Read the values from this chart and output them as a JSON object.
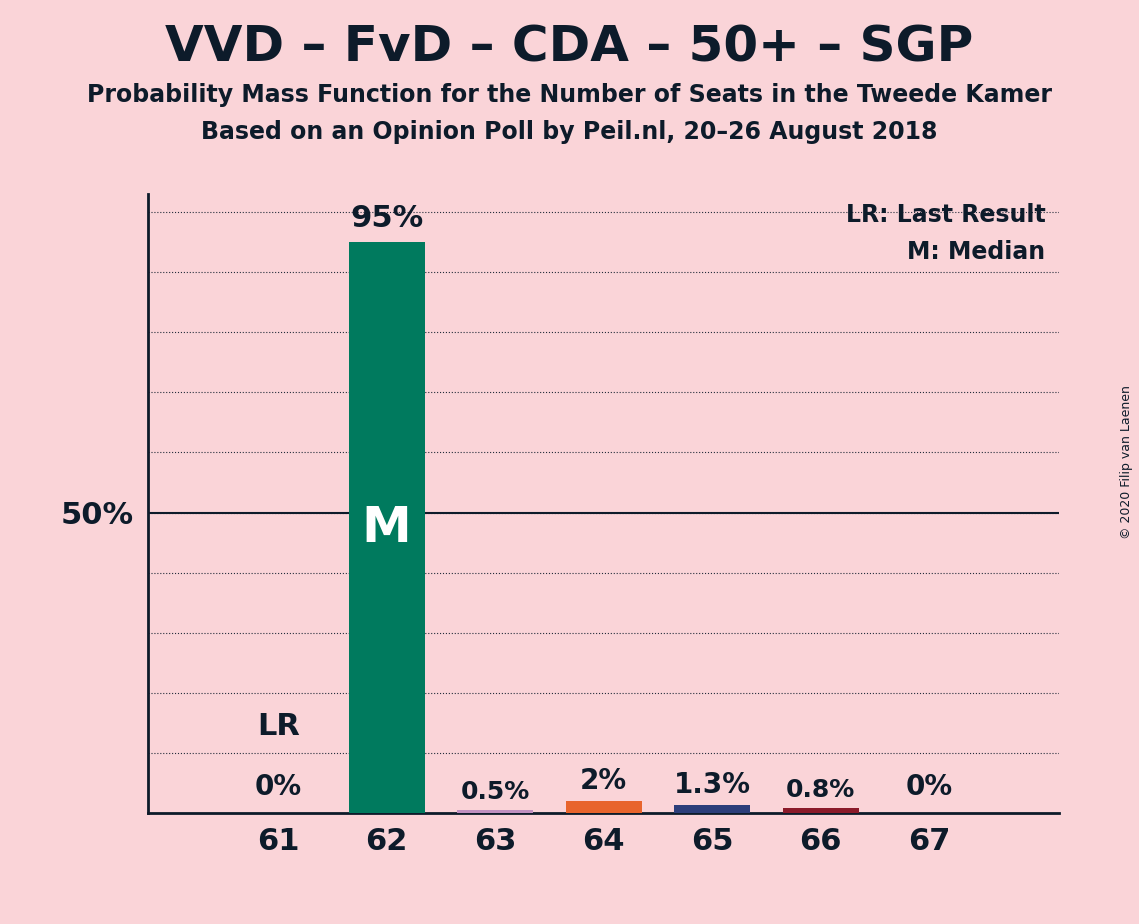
{
  "title": "VVD – FvD – CDA – 50+ – SGP",
  "subtitle1": "Probability Mass Function for the Number of Seats in the Tweede Kamer",
  "subtitle2": "Based on an Opinion Poll by Peil.nl, 20–26 August 2018",
  "copyright": "© 2020 Filip van Laenen",
  "seats": [
    61,
    62,
    63,
    64,
    65,
    66,
    67
  ],
  "values": [
    0.0,
    95.0,
    0.5,
    2.0,
    1.3,
    0.8,
    0.0
  ],
  "labels": [
    "0%",
    "95%",
    "0.5%",
    "2%",
    "1.3%",
    "0.8%",
    "0%"
  ],
  "bar_colors": [
    "#FAD4D8",
    "#007A5E",
    "#C090C0",
    "#E8642C",
    "#2C3E7A",
    "#8B1A2A",
    "#FAD4D8"
  ],
  "median_seat": 62,
  "lr_seat": 61,
  "background_color": "#FAD4D8",
  "axis_color": "#0D1B2A",
  "grid_color": "#0D1B2A",
  "text_color": "#0D1B2A",
  "legend_lr": "LR: Last Result",
  "legend_m": "M: Median",
  "ylim_max": 103
}
